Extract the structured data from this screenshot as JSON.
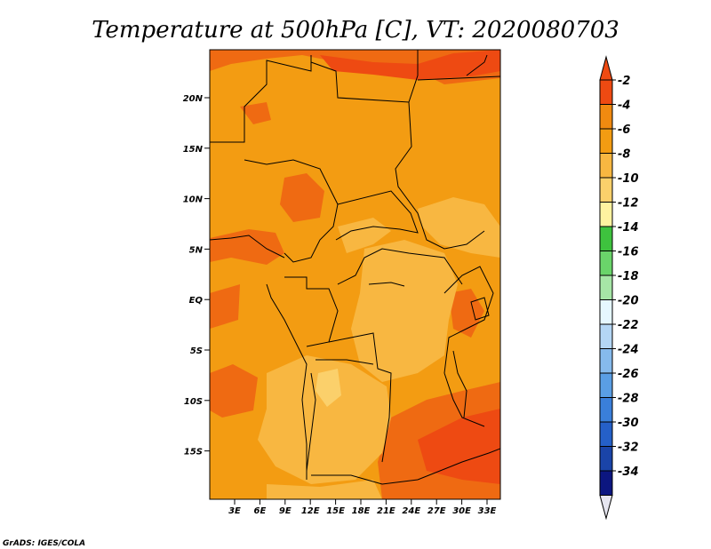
{
  "title": "Temperature at 500hPa [C], VT: 2020080703",
  "credit": "GrADS: IGES/COLA",
  "colors": {
    "base_field": "#f39c12",
    "warm_patch": "#ef6a12",
    "hot_patch": "#ee4a12",
    "cool_patch": "#f8b741",
    "cooler_patch": "#fbd06b",
    "border": "#000000"
  },
  "lat_ticks": [
    "20N",
    "15N",
    "10N",
    "5N",
    "EQ",
    "5S",
    "10S",
    "15S"
  ],
  "lon_ticks": [
    "3E",
    "6E",
    "9E",
    "12E",
    "15E",
    "18E",
    "21E",
    "24E",
    "27E",
    "30E",
    "33E"
  ],
  "colorbar": {
    "labels": [
      "-2",
      "-4",
      "-6",
      "-8",
      "-10",
      "-12",
      "-14",
      "-16",
      "-18",
      "-20",
      "-22",
      "-24",
      "-26",
      "-28",
      "-30",
      "-32",
      "-34"
    ],
    "colors": [
      "#ee4a12",
      "#f08a10",
      "#f39c12",
      "#f8b741",
      "#fbd06b",
      "#fff3a0",
      "#3ec23e",
      "#6ad46a",
      "#a6e6a6",
      "#e6f7ff",
      "#b4d6f4",
      "#86baec",
      "#5a9ee4",
      "#3a7fda",
      "#2560c8",
      "#1a44a8",
      "#0c1680"
    ],
    "top_arrow_color": "#ee4a12",
    "bottom_arrow_color": "#e6e6f0"
  }
}
